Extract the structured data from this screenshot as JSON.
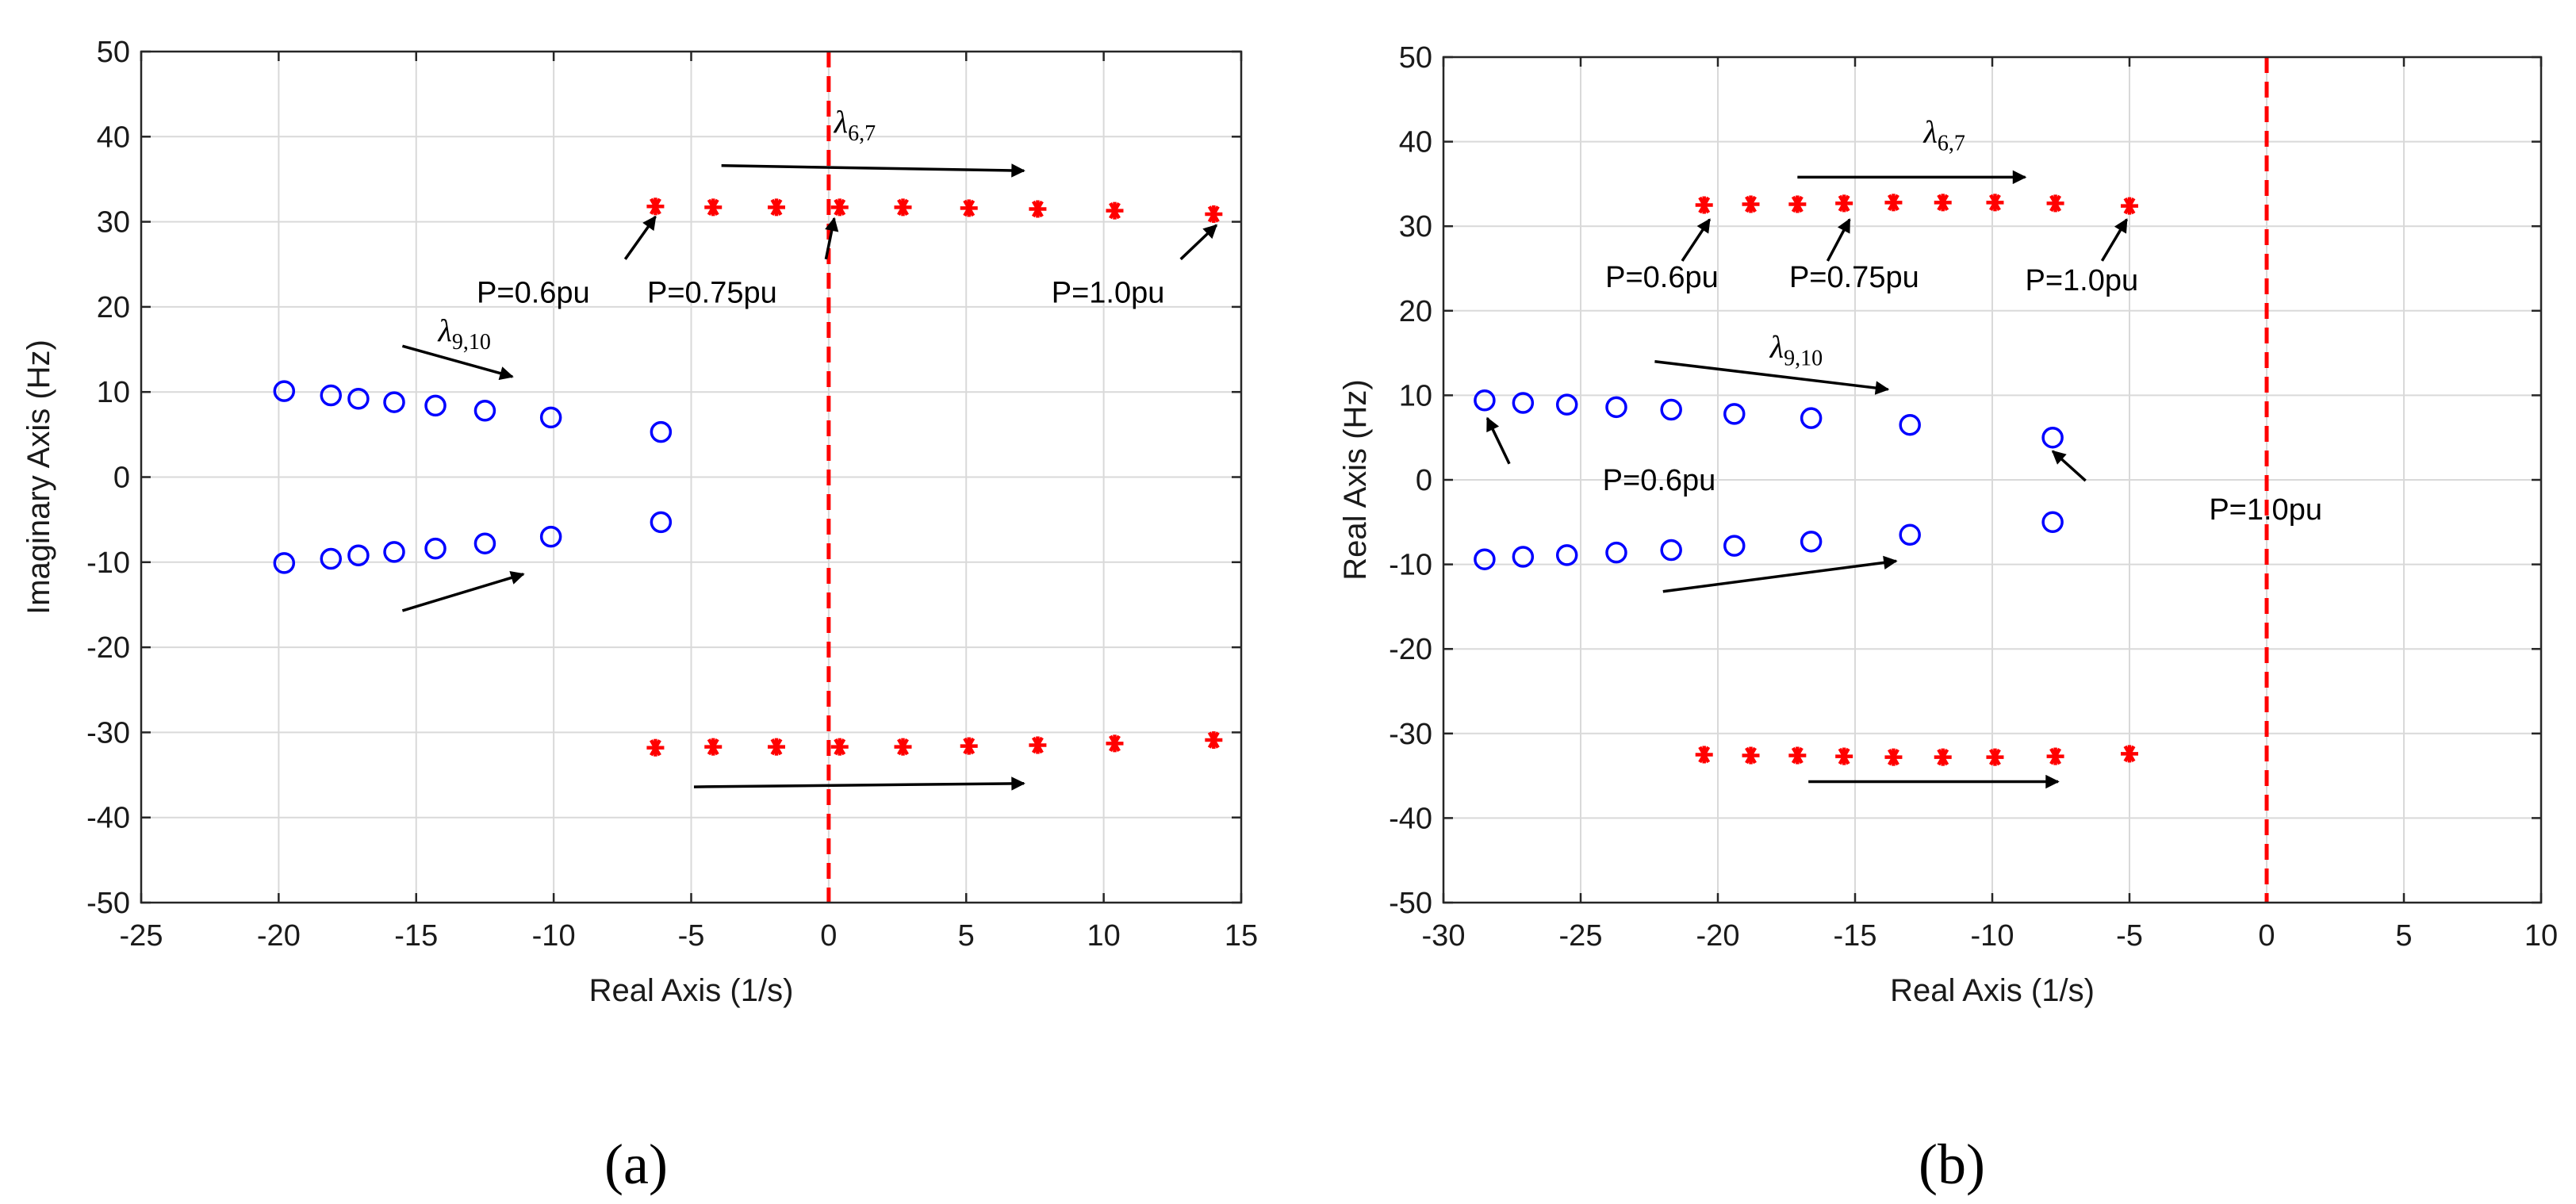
{
  "colors": {
    "circles": "#0000ff",
    "stars": "#ff0000",
    "zero_line": "#ff0000",
    "arrows": "#000000"
  },
  "chart_data": [
    {
      "type": "scatter",
      "panel_label": "(a)",
      "xlabel": "Real Axis (1/s)",
      "ylabel": "Imaginary Axis (Hz)",
      "xlim": [
        -25,
        15
      ],
      "ylim": [
        -50,
        50
      ],
      "xticks": [
        -25,
        -20,
        -15,
        -10,
        -5,
        0,
        5,
        10,
        15
      ],
      "yticks": [
        -50,
        -40,
        -30,
        -20,
        -10,
        0,
        10,
        20,
        30,
        40,
        50
      ],
      "grid": true,
      "vline": {
        "x": 0,
        "style": "dashed",
        "color": "#ff0000"
      },
      "series": [
        {
          "name": "lambda_9_10",
          "marker": "circle",
          "color": "#0000ff",
          "x": [
            -19.8,
            -18.1,
            -17.1,
            -15.8,
            -14.3,
            -12.5,
            -10.1,
            -6.1
          ],
          "y": [
            10.1,
            9.6,
            9.2,
            8.8,
            8.4,
            7.8,
            7.0,
            5.3
          ]
        },
        {
          "name": "lambda_9_10_conj",
          "marker": "circle",
          "color": "#0000ff",
          "x": [
            -19.8,
            -18.1,
            -17.1,
            -15.8,
            -14.3,
            -12.5,
            -10.1,
            -6.1
          ],
          "y": [
            -10.1,
            -9.6,
            -9.2,
            -8.8,
            -8.4,
            -7.8,
            -7.0,
            -5.3
          ]
        },
        {
          "name": "lambda_6_7",
          "marker": "star",
          "color": "#ff0000",
          "x": [
            -6.3,
            -4.2,
            -1.9,
            0.4,
            2.7,
            5.1,
            7.6,
            10.4,
            14.0
          ],
          "y": [
            31.8,
            31.7,
            31.7,
            31.7,
            31.7,
            31.6,
            31.5,
            31.3,
            30.9
          ]
        },
        {
          "name": "lambda_6_7_conj",
          "marker": "star",
          "color": "#ff0000",
          "x": [
            -6.3,
            -4.2,
            -1.9,
            0.4,
            2.7,
            5.1,
            7.6,
            10.4,
            14.0
          ],
          "y": [
            -31.8,
            -31.7,
            -31.7,
            -31.7,
            -31.7,
            -31.6,
            -31.5,
            -31.3,
            -30.9
          ]
        }
      ],
      "arrows": [
        {
          "from": [
            -3.9,
            36.6
          ],
          "to": [
            7.1,
            36.0
          ]
        },
        {
          "from": [
            -4.9,
            -36.4
          ],
          "to": [
            7.1,
            -36.0
          ]
        },
        {
          "from": [
            -15.5,
            15.4
          ],
          "to": [
            -11.5,
            11.8
          ]
        },
        {
          "from": [
            -15.5,
            -15.7
          ],
          "to": [
            -11.1,
            -11.4
          ]
        },
        {
          "from": [
            -7.4,
            25.6
          ],
          "to": [
            -6.3,
            30.6
          ]
        },
        {
          "from": [
            -0.1,
            25.6
          ],
          "to": [
            0.2,
            30.4
          ]
        },
        {
          "from": [
            12.8,
            25.6
          ],
          "to": [
            14.1,
            29.6
          ]
        }
      ],
      "annotations": [
        {
          "text": "P=0.6pu",
          "x": -12.8,
          "y": 20.5
        },
        {
          "text": "P=0.75pu",
          "x": -6.6,
          "y": 20.5
        },
        {
          "text": "P=1.0pu",
          "x": 8.1,
          "y": 20.5
        }
      ],
      "lambda_labels": [
        {
          "main": "λ",
          "sub": "6,7",
          "x": 0.2,
          "y": 40.5
        },
        {
          "main": "λ",
          "sub": "9,10",
          "x": -14.2,
          "y": 16.0
        }
      ]
    },
    {
      "type": "scatter",
      "panel_label": "(b)",
      "xlabel": "Real Axis (1/s)",
      "ylabel": "Real Axis (Hz)",
      "xlim": [
        -30,
        10
      ],
      "ylim": [
        -50,
        50
      ],
      "xticks": [
        -30,
        -25,
        -20,
        -15,
        -10,
        -5,
        0,
        5,
        10
      ],
      "yticks": [
        -50,
        -40,
        -30,
        -20,
        -10,
        0,
        10,
        20,
        30,
        40,
        50
      ],
      "grid": true,
      "vline": {
        "x": 0,
        "style": "dashed",
        "color": "#ff0000"
      },
      "series": [
        {
          "name": "lambda_9_10",
          "marker": "circle",
          "color": "#0000ff",
          "x": [
            -28.5,
            -27.1,
            -25.5,
            -23.7,
            -21.7,
            -19.4,
            -16.6,
            -13.0,
            -7.8
          ],
          "y": [
            9.4,
            9.1,
            8.9,
            8.6,
            8.3,
            7.8,
            7.3,
            6.5,
            5.0
          ]
        },
        {
          "name": "lambda_9_10_conj",
          "marker": "circle",
          "color": "#0000ff",
          "x": [
            -28.5,
            -27.1,
            -25.5,
            -23.7,
            -21.7,
            -19.4,
            -16.6,
            -13.0,
            -7.8
          ],
          "y": [
            -9.4,
            -9.1,
            -8.9,
            -8.6,
            -8.3,
            -7.8,
            -7.3,
            -6.5,
            -5.0
          ]
        },
        {
          "name": "lambda_6_7",
          "marker": "star",
          "color": "#ff0000",
          "x": [
            -20.5,
            -18.8,
            -17.1,
            -15.4,
            -13.6,
            -11.8,
            -9.9,
            -7.7,
            -5.0
          ],
          "y": [
            32.5,
            32.6,
            32.6,
            32.7,
            32.8,
            32.8,
            32.8,
            32.7,
            32.4
          ]
        },
        {
          "name": "lambda_6_7_conj",
          "marker": "star",
          "color": "#ff0000",
          "x": [
            -20.5,
            -18.8,
            -17.1,
            -15.4,
            -13.6,
            -11.8,
            -9.9,
            -7.7,
            -5.0
          ],
          "y": [
            -32.5,
            -32.6,
            -32.6,
            -32.7,
            -32.8,
            -32.8,
            -32.8,
            -32.7,
            -32.4
          ]
        }
      ],
      "arrows": [
        {
          "from": [
            -17.1,
            35.8
          ],
          "to": [
            -8.8,
            35.8
          ]
        },
        {
          "from": [
            -16.7,
            -35.7
          ],
          "to": [
            -7.6,
            -35.7
          ]
        },
        {
          "from": [
            -22.3,
            14.0
          ],
          "to": [
            -13.8,
            10.7
          ]
        },
        {
          "from": [
            -22.0,
            -13.2
          ],
          "to": [
            -13.5,
            -9.6
          ]
        },
        {
          "from": [
            -21.3,
            25.9
          ],
          "to": [
            -20.3,
            30.8
          ]
        },
        {
          "from": [
            -16.0,
            25.9
          ],
          "to": [
            -15.2,
            30.8
          ]
        },
        {
          "from": [
            -6.0,
            25.9
          ],
          "to": [
            -5.1,
            30.8
          ]
        },
        {
          "from": [
            -27.6,
            1.9
          ],
          "to": [
            -28.4,
            7.3
          ]
        },
        {
          "from": [
            -6.6,
            -0.1
          ],
          "to": [
            -7.8,
            3.4
          ]
        }
      ],
      "annotations": [
        {
          "text": "P=0.6pu",
          "x": -24.1,
          "y": 22.8
        },
        {
          "text": "P=0.75pu",
          "x": -17.4,
          "y": 22.8
        },
        {
          "text": "P=1.0pu",
          "x": -8.8,
          "y": 22.4
        },
        {
          "text": "P=0.6pu",
          "x": -24.2,
          "y": -1.2
        },
        {
          "text": "P=1.0pu",
          "x": -2.1,
          "y": -4.7
        }
      ],
      "lambda_labels": [
        {
          "main": "λ",
          "sub": "6,7",
          "x": -12.5,
          "y": 39.9
        },
        {
          "main": "λ",
          "sub": "9,10",
          "x": -18.1,
          "y": 14.5
        }
      ]
    }
  ]
}
